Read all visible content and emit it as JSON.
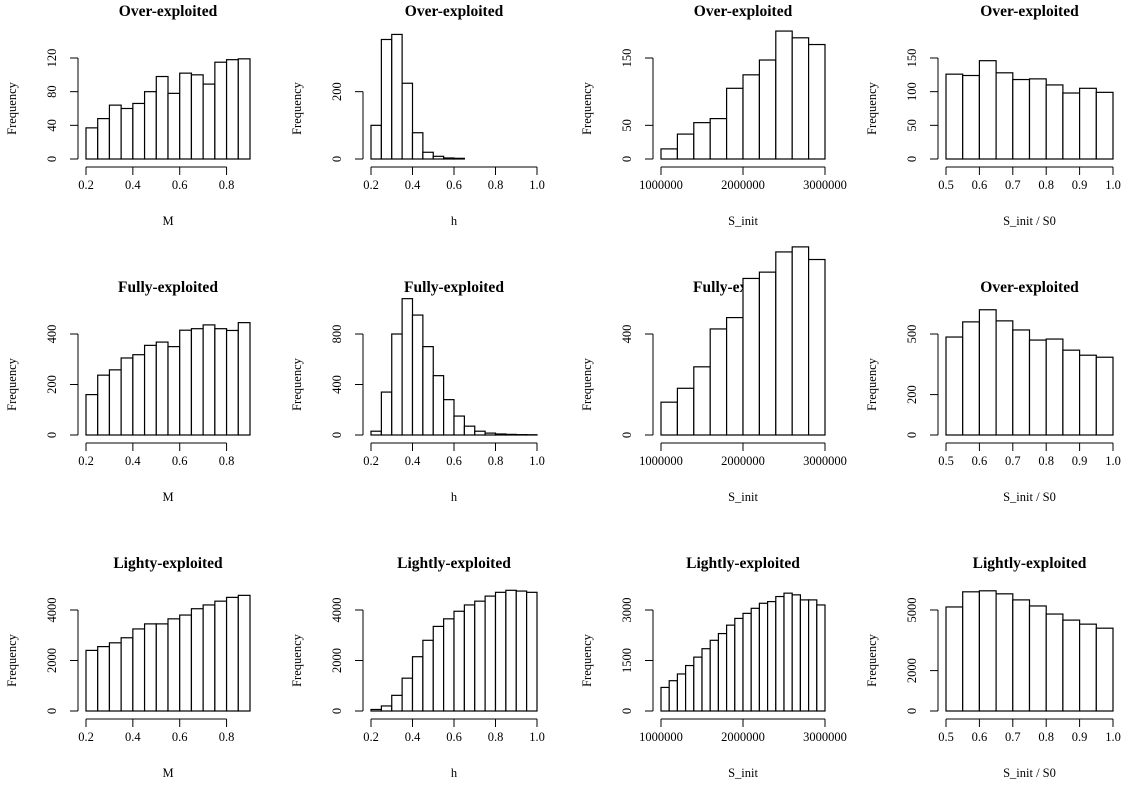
{
  "chart_data": [
    {
      "type": "bar",
      "title": "Over-exploited",
      "xlabel": "M",
      "ylabel": "Frequency",
      "bin_edges": [
        0.2,
        0.25,
        0.3,
        0.35,
        0.4,
        0.45,
        0.5,
        0.55,
        0.6,
        0.65,
        0.7,
        0.75,
        0.8,
        0.85,
        0.9
      ],
      "values": [
        37,
        48,
        64,
        60,
        66,
        80,
        98,
        78,
        102,
        100,
        89,
        115,
        118,
        119
      ],
      "xlim": [
        0.2,
        0.9
      ],
      "ylim": [
        0,
        120
      ],
      "xticks": [
        0.2,
        0.4,
        0.6,
        0.8
      ],
      "xtick_labels": [
        "0.2",
        "0.4",
        "0.6",
        "0.8"
      ],
      "yticks": [
        0,
        40,
        80,
        120
      ],
      "ytick_labels": [
        "0",
        "40",
        "80",
        "120"
      ]
    },
    {
      "type": "bar",
      "title": "Over-exploited",
      "xlabel": "h",
      "ylabel": "Frequency",
      "bin_edges": [
        0.2,
        0.25,
        0.3,
        0.35,
        0.4,
        0.45,
        0.5,
        0.55,
        0.6,
        0.65
      ],
      "values": [
        100,
        355,
        370,
        225,
        78,
        20,
        8,
        3,
        2
      ],
      "xlim": [
        0.2,
        1.0
      ],
      "ylim": [
        0,
        300
      ],
      "xticks": [
        0.2,
        0.4,
        0.6,
        0.8,
        1.0
      ],
      "xtick_labels": [
        "0.2",
        "0.4",
        "0.6",
        "0.8",
        "1.0"
      ],
      "yticks": [
        0,
        200
      ],
      "ytick_labels": [
        "0",
        "200"
      ]
    },
    {
      "type": "bar",
      "title": "Over-exploited",
      "xlabel": "S_init",
      "ylabel": "Frequency",
      "bin_edges": [
        1000000,
        1200000,
        1400000,
        1600000,
        1800000,
        2000000,
        2200000,
        2400000,
        2600000,
        2800000,
        3000000
      ],
      "values": [
        15,
        37,
        54,
        60,
        105,
        125,
        147,
        190,
        180,
        170
      ],
      "xlim": [
        1000000,
        3000000
      ],
      "ylim": [
        0,
        150
      ],
      "xticks": [
        1000000,
        2000000,
        3000000
      ],
      "xtick_labels": [
        "1000000",
        "2000000",
        "3000000"
      ],
      "yticks": [
        0,
        50,
        150
      ],
      "ytick_labels": [
        "0",
        "50",
        "150"
      ]
    },
    {
      "type": "bar",
      "title": "Over-exploited",
      "xlabel": "S_init / S0",
      "ylabel": "Frequency",
      "bin_edges": [
        0.5,
        0.55,
        0.6,
        0.65,
        0.7,
        0.75,
        0.8,
        0.85,
        0.9,
        0.95,
        1.0
      ],
      "values": [
        126,
        124,
        146,
        128,
        118,
        119,
        110,
        98,
        105,
        99
      ],
      "xlim": [
        0.5,
        1.0
      ],
      "ylim": [
        0,
        150
      ],
      "xticks": [
        0.5,
        0.6,
        0.7,
        0.8,
        0.9,
        1.0
      ],
      "xtick_labels": [
        "0.5",
        "0.6",
        "0.7",
        "0.8",
        "0.9",
        "1.0"
      ],
      "yticks": [
        0,
        50,
        100,
        150
      ],
      "ytick_labels": [
        "0",
        "50",
        "100",
        "150"
      ]
    },
    {
      "type": "bar",
      "title": "Fully-exploited",
      "xlabel": "M",
      "ylabel": "Frequency",
      "bin_edges": [
        0.2,
        0.25,
        0.3,
        0.35,
        0.4,
        0.45,
        0.5,
        0.55,
        0.6,
        0.65,
        0.7,
        0.75,
        0.8,
        0.85,
        0.9
      ],
      "values": [
        160,
        237,
        258,
        305,
        318,
        355,
        368,
        350,
        415,
        421,
        436,
        421,
        414,
        445
      ],
      "xlim": [
        0.2,
        0.9
      ],
      "ylim": [
        0,
        400
      ],
      "xticks": [
        0.2,
        0.4,
        0.6,
        0.8
      ],
      "xtick_labels": [
        "0.2",
        "0.4",
        "0.6",
        "0.8"
      ],
      "yticks": [
        0,
        200,
        400
      ],
      "ytick_labels": [
        "0",
        "200",
        "400"
      ]
    },
    {
      "type": "bar",
      "title": "Fully-exploited",
      "xlabel": "h",
      "ylabel": "Frequency",
      "bin_edges": [
        0.2,
        0.25,
        0.3,
        0.35,
        0.4,
        0.45,
        0.5,
        0.55,
        0.6,
        0.65,
        0.7,
        0.75,
        0.8,
        0.85,
        0.9,
        0.95,
        1.0
      ],
      "values": [
        30,
        340,
        800,
        1080,
        950,
        700,
        470,
        280,
        150,
        70,
        30,
        15,
        8,
        5,
        3,
        2
      ],
      "xlim": [
        0.2,
        1.0
      ],
      "ylim": [
        0,
        800
      ],
      "xticks": [
        0.2,
        0.4,
        0.6,
        0.8,
        1.0
      ],
      "xtick_labels": [
        "0.2",
        "0.4",
        "0.6",
        "0.8",
        "1.0"
      ],
      "yticks": [
        0,
        400,
        800
      ],
      "ytick_labels": [
        "0",
        "400",
        "800"
      ]
    },
    {
      "type": "bar",
      "title": "Fully-exploited",
      "xlabel": "S_init",
      "ylabel": "Frequency",
      "bin_edges": [
        1000000,
        1200000,
        1400000,
        1600000,
        1800000,
        2000000,
        2200000,
        2400000,
        2600000,
        2800000,
        3000000
      ],
      "values": [
        130,
        185,
        270,
        420,
        465,
        620,
        645,
        725,
        745,
        695
      ],
      "xlim": [
        1000000,
        3000000
      ],
      "ylim": [
        0,
        400
      ],
      "xticks": [
        1000000,
        2000000,
        3000000
      ],
      "xtick_labels": [
        "1000000",
        "2000000",
        "3000000"
      ],
      "yticks": [
        0,
        400
      ],
      "ytick_labels": [
        "0",
        "400"
      ]
    },
    {
      "type": "bar",
      "title": "Over-exploited",
      "xlabel": "S_init / S0",
      "ylabel": "Frequency",
      "bin_edges": [
        0.5,
        0.55,
        0.6,
        0.65,
        0.7,
        0.75,
        0.8,
        0.85,
        0.9,
        0.95,
        1.0
      ],
      "values": [
        485,
        560,
        620,
        565,
        520,
        470,
        475,
        420,
        395,
        385
      ],
      "xlim": [
        0.5,
        1.0
      ],
      "ylim": [
        0,
        500
      ],
      "xticks": [
        0.5,
        0.6,
        0.7,
        0.8,
        0.9,
        1.0
      ],
      "xtick_labels": [
        "0.5",
        "0.6",
        "0.7",
        "0.8",
        "0.9",
        "1.0"
      ],
      "yticks": [
        0,
        200,
        500
      ],
      "ytick_labels": [
        "0",
        "200",
        "500"
      ]
    },
    {
      "type": "bar",
      "title": "Lighty-exploited",
      "xlabel": "M",
      "ylabel": "Frequency",
      "bin_edges": [
        0.2,
        0.25,
        0.3,
        0.35,
        0.4,
        0.45,
        0.5,
        0.55,
        0.6,
        0.65,
        0.7,
        0.75,
        0.8,
        0.85,
        0.9
      ],
      "values": [
        2400,
        2550,
        2700,
        2900,
        3250,
        3450,
        3450,
        3650,
        3800,
        4050,
        4200,
        4350,
        4500,
        4580
      ],
      "xlim": [
        0.2,
        0.9
      ],
      "ylim": [
        0,
        4000
      ],
      "xticks": [
        0.2,
        0.4,
        0.6,
        0.8
      ],
      "xtick_labels": [
        "0.2",
        "0.4",
        "0.6",
        "0.8"
      ],
      "yticks": [
        0,
        2000,
        4000
      ],
      "ytick_labels": [
        "0",
        "2000",
        "4000"
      ]
    },
    {
      "type": "bar",
      "title": "Lightly-exploited",
      "xlabel": "h",
      "ylabel": "Frequency",
      "bin_edges": [
        0.2,
        0.25,
        0.3,
        0.35,
        0.4,
        0.45,
        0.5,
        0.55,
        0.6,
        0.65,
        0.7,
        0.75,
        0.8,
        0.85,
        0.9,
        0.95,
        1.0
      ],
      "values": [
        60,
        200,
        620,
        1300,
        2150,
        2800,
        3350,
        3650,
        3950,
        4200,
        4350,
        4550,
        4700,
        4780,
        4750,
        4700
      ],
      "xlim": [
        0.2,
        1.0
      ],
      "ylim": [
        0,
        4000
      ],
      "xticks": [
        0.2,
        0.4,
        0.6,
        0.8,
        1.0
      ],
      "xtick_labels": [
        "0.2",
        "0.4",
        "0.6",
        "0.8",
        "1.0"
      ],
      "yticks": [
        0,
        2000,
        4000
      ],
      "ytick_labels": [
        "0",
        "2000",
        "4000"
      ]
    },
    {
      "type": "bar",
      "title": "Lightly-exploited",
      "xlabel": "S_init",
      "ylabel": "Frequency",
      "bin_edges": [
        1000000,
        1100000,
        1200000,
        1300000,
        1400000,
        1500000,
        1600000,
        1700000,
        1800000,
        1900000,
        2000000,
        2100000,
        2200000,
        2300000,
        2400000,
        2500000,
        2600000,
        2700000,
        2800000,
        2900000,
        3000000
      ],
      "values": [
        700,
        900,
        1100,
        1350,
        1600,
        1850,
        2100,
        2300,
        2550,
        2750,
        2900,
        3050,
        3200,
        3250,
        3400,
        3500,
        3450,
        3300,
        3300,
        3150
      ],
      "xlim": [
        1000000,
        3000000
      ],
      "ylim": [
        0,
        3000
      ],
      "xticks": [
        1000000,
        2000000,
        3000000
      ],
      "xtick_labels": [
        "1000000",
        "2000000",
        "3000000"
      ],
      "yticks": [
        0,
        1500,
        3000
      ],
      "ytick_labels": [
        "0",
        "1500",
        "3000"
      ]
    },
    {
      "type": "bar",
      "title": "Lightly-exploited",
      "xlabel": "S_init / S0",
      "ylabel": "Frequency",
      "bin_edges": [
        0.5,
        0.55,
        0.6,
        0.65,
        0.7,
        0.75,
        0.8,
        0.85,
        0.9,
        0.95,
        1.0
      ],
      "values": [
        5150,
        5900,
        5950,
        5800,
        5500,
        5200,
        4800,
        4500,
        4300,
        4100
      ],
      "xlim": [
        0.5,
        1.0
      ],
      "ylim": [
        0,
        5000
      ],
      "xticks": [
        0.5,
        0.6,
        0.7,
        0.8,
        0.9,
        1.0
      ],
      "xtick_labels": [
        "0.5",
        "0.6",
        "0.7",
        "0.8",
        "0.9",
        "1.0"
      ],
      "yticks": [
        0,
        2000,
        5000
      ],
      "ytick_labels": [
        "0",
        "2000",
        "5000"
      ]
    }
  ]
}
